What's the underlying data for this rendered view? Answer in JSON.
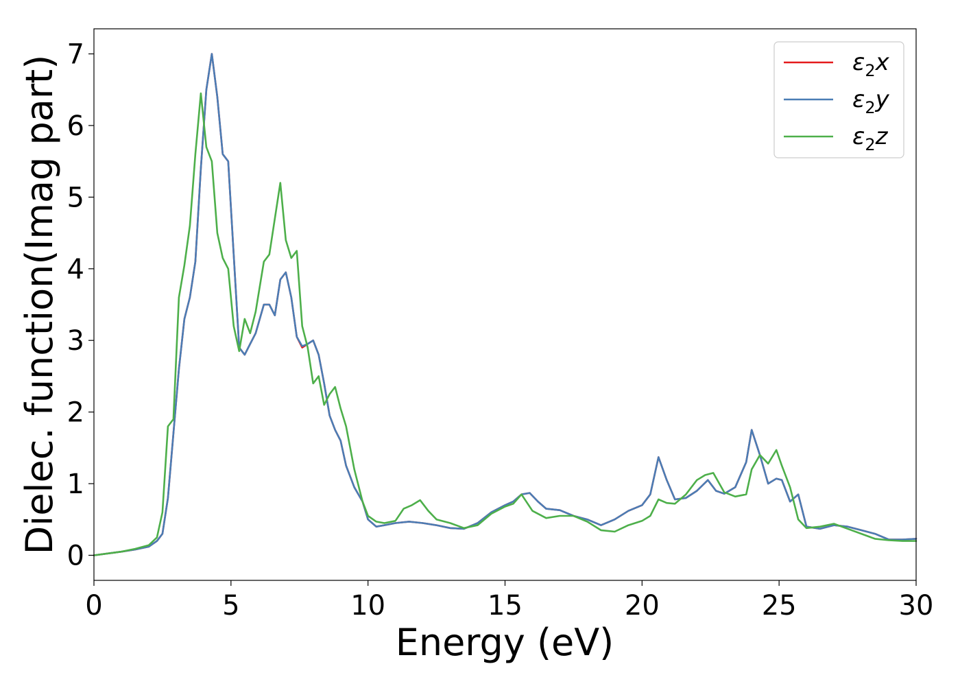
{
  "chart_data": {
    "type": "line",
    "title": "",
    "xlabel": "Energy (eV)",
    "ylabel": "Dielec. function(Imag part)",
    "xlim": [
      0,
      30
    ],
    "ylim": [
      -0.35,
      7.35
    ],
    "xticks": [
      0,
      5,
      10,
      15,
      20,
      25,
      30
    ],
    "yticks": [
      0,
      1,
      2,
      3,
      4,
      5,
      6,
      7
    ],
    "grid": false,
    "legend": "top-right",
    "series": [
      {
        "name": "ε₂x",
        "label_base": "ε",
        "label_sub": "2",
        "label_var": "x",
        "color": "#e41a1c",
        "x": [
          0,
          1,
          1.5,
          2,
          2.3,
          2.5,
          2.7,
          2.9,
          3.1,
          3.3,
          3.5,
          3.7,
          3.9,
          4.1,
          4.3,
          4.5,
          4.7,
          4.9,
          5.1,
          5.3,
          5.5,
          5.7,
          5.9,
          6.2,
          6.4,
          6.6,
          6.8,
          7.0,
          7.2,
          7.4,
          7.6,
          7.8,
          8.0,
          8.2,
          8.4,
          8.6,
          8.8,
          9.0,
          9.2,
          9.5,
          9.8,
          10.0,
          10.3,
          10.6,
          11.0,
          11.5,
          12.0,
          12.5,
          13.0,
          13.5,
          14.0,
          14.5,
          15.0,
          15.3,
          15.6,
          15.9,
          16.2,
          16.5,
          17.0,
          17.5,
          18.0,
          18.5,
          19.0,
          19.5,
          20.0,
          20.3,
          20.6,
          20.9,
          21.2,
          21.6,
          22.0,
          22.4,
          22.7,
          23.0,
          23.4,
          23.8,
          24.0,
          24.3,
          24.6,
          24.9,
          25.1,
          25.4,
          25.7,
          26.0,
          26.5,
          27.0,
          27.5,
          28.0,
          28.5,
          29.0,
          29.5,
          30.0
        ],
        "y": [
          0,
          0.05,
          0.08,
          0.12,
          0.2,
          0.3,
          0.8,
          1.7,
          2.6,
          3.3,
          3.6,
          4.1,
          5.4,
          6.5,
          7.0,
          6.4,
          5.6,
          5.5,
          4.2,
          2.9,
          2.8,
          2.95,
          3.1,
          3.5,
          3.5,
          3.35,
          3.85,
          3.95,
          3.6,
          3.05,
          2.9,
          2.95,
          3.0,
          2.8,
          2.4,
          1.95,
          1.75,
          1.6,
          1.25,
          0.95,
          0.75,
          0.5,
          0.4,
          0.42,
          0.45,
          0.47,
          0.45,
          0.42,
          0.38,
          0.37,
          0.45,
          0.6,
          0.7,
          0.75,
          0.85,
          0.87,
          0.75,
          0.65,
          0.63,
          0.55,
          0.5,
          0.42,
          0.5,
          0.62,
          0.7,
          0.85,
          1.37,
          1.05,
          0.78,
          0.8,
          0.9,
          1.05,
          0.9,
          0.86,
          0.95,
          1.3,
          1.75,
          1.4,
          1.0,
          1.07,
          1.05,
          0.75,
          0.85,
          0.4,
          0.37,
          0.42,
          0.4,
          0.35,
          0.3,
          0.22,
          0.22,
          0.23
        ]
      },
      {
        "name": "ε₂y",
        "label_base": "ε",
        "label_sub": "2",
        "label_var": "y",
        "color": "#4a7db5",
        "x": [
          0,
          1,
          1.5,
          2,
          2.3,
          2.5,
          2.7,
          2.9,
          3.1,
          3.3,
          3.5,
          3.7,
          3.9,
          4.1,
          4.3,
          4.5,
          4.7,
          4.9,
          5.1,
          5.3,
          5.5,
          5.7,
          5.9,
          6.2,
          6.4,
          6.6,
          6.8,
          7.0,
          7.2,
          7.4,
          7.6,
          7.8,
          8.0,
          8.2,
          8.4,
          8.6,
          8.8,
          9.0,
          9.2,
          9.5,
          9.8,
          10.0,
          10.3,
          10.6,
          11.0,
          11.5,
          12.0,
          12.5,
          13.0,
          13.5,
          14.0,
          14.5,
          15.0,
          15.3,
          15.6,
          15.9,
          16.2,
          16.5,
          17.0,
          17.5,
          18.0,
          18.5,
          19.0,
          19.5,
          20.0,
          20.3,
          20.6,
          20.9,
          21.2,
          21.6,
          22.0,
          22.4,
          22.7,
          23.0,
          23.4,
          23.8,
          24.0,
          24.3,
          24.6,
          24.9,
          25.1,
          25.4,
          25.7,
          26.0,
          26.5,
          27.0,
          27.5,
          28.0,
          28.5,
          29.0,
          29.5,
          30.0
        ],
        "y": [
          0,
          0.05,
          0.08,
          0.12,
          0.2,
          0.3,
          0.8,
          1.7,
          2.6,
          3.3,
          3.6,
          4.1,
          5.4,
          6.5,
          7.0,
          6.4,
          5.6,
          5.5,
          4.2,
          2.9,
          2.8,
          2.95,
          3.1,
          3.5,
          3.5,
          3.35,
          3.85,
          3.95,
          3.6,
          3.05,
          2.92,
          2.95,
          3.0,
          2.8,
          2.4,
          1.95,
          1.75,
          1.6,
          1.25,
          0.95,
          0.75,
          0.5,
          0.4,
          0.42,
          0.45,
          0.47,
          0.45,
          0.42,
          0.38,
          0.37,
          0.45,
          0.6,
          0.7,
          0.75,
          0.85,
          0.87,
          0.75,
          0.65,
          0.63,
          0.55,
          0.5,
          0.42,
          0.5,
          0.62,
          0.7,
          0.85,
          1.37,
          1.05,
          0.78,
          0.8,
          0.9,
          1.05,
          0.9,
          0.86,
          0.95,
          1.3,
          1.75,
          1.4,
          1.0,
          1.07,
          1.05,
          0.75,
          0.85,
          0.4,
          0.37,
          0.42,
          0.4,
          0.35,
          0.3,
          0.22,
          0.22,
          0.23
        ]
      },
      {
        "name": "ε₂z",
        "label_base": "ε",
        "label_sub": "2",
        "label_var": "z",
        "color": "#4daf4a",
        "x": [
          0,
          1,
          1.5,
          2,
          2.3,
          2.5,
          2.7,
          2.9,
          3.1,
          3.3,
          3.5,
          3.7,
          3.9,
          4.1,
          4.3,
          4.5,
          4.7,
          4.9,
          5.1,
          5.3,
          5.5,
          5.7,
          5.9,
          6.2,
          6.4,
          6.6,
          6.8,
          7.0,
          7.2,
          7.4,
          7.6,
          7.8,
          8.0,
          8.2,
          8.4,
          8.6,
          8.8,
          9.0,
          9.2,
          9.5,
          9.8,
          10.0,
          10.3,
          10.6,
          11.0,
          11.3,
          11.6,
          11.9,
          12.2,
          12.5,
          13.0,
          13.5,
          14.0,
          14.5,
          15.0,
          15.3,
          15.6,
          16.0,
          16.5,
          17.0,
          17.5,
          18.0,
          18.5,
          19.0,
          19.5,
          20.0,
          20.3,
          20.6,
          20.9,
          21.2,
          21.6,
          22.0,
          22.3,
          22.6,
          23.0,
          23.4,
          23.8,
          24.0,
          24.3,
          24.6,
          24.9,
          25.1,
          25.4,
          25.7,
          26.0,
          26.5,
          27.0,
          27.5,
          28.0,
          28.5,
          29.0,
          29.5,
          30.0
        ],
        "y": [
          0,
          0.05,
          0.09,
          0.14,
          0.25,
          0.6,
          1.8,
          1.9,
          3.6,
          4.05,
          4.6,
          5.6,
          6.45,
          5.7,
          5.5,
          4.5,
          4.15,
          4.0,
          3.2,
          2.85,
          3.3,
          3.1,
          3.4,
          4.1,
          4.2,
          4.7,
          5.2,
          4.4,
          4.15,
          4.25,
          3.2,
          2.9,
          2.4,
          2.5,
          2.1,
          2.25,
          2.35,
          2.05,
          1.8,
          1.2,
          0.75,
          0.55,
          0.47,
          0.45,
          0.48,
          0.65,
          0.7,
          0.77,
          0.62,
          0.5,
          0.45,
          0.38,
          0.42,
          0.58,
          0.68,
          0.72,
          0.85,
          0.62,
          0.52,
          0.55,
          0.55,
          0.47,
          0.35,
          0.33,
          0.42,
          0.48,
          0.55,
          0.78,
          0.73,
          0.72,
          0.85,
          1.05,
          1.12,
          1.15,
          0.88,
          0.82,
          0.85,
          1.2,
          1.4,
          1.28,
          1.47,
          1.25,
          0.95,
          0.5,
          0.38,
          0.4,
          0.44,
          0.37,
          0.3,
          0.23,
          0.21,
          0.2,
          0.2
        ]
      }
    ]
  }
}
